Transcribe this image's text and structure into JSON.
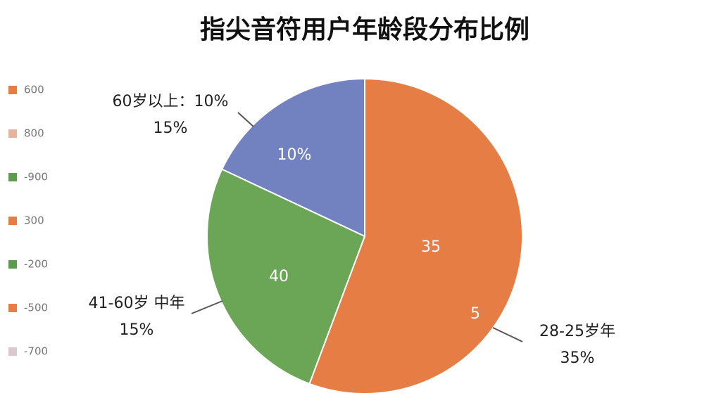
{
  "chart_data": {
    "type": "pie",
    "title": "指尖音符用户年龄段分布比例",
    "slices": [
      {
        "color": "#e57d45",
        "value": 55.7
      },
      {
        "color": "#6aa655",
        "value": 26.3
      },
      {
        "color": "#7281c0",
        "value": 18
      }
    ],
    "inner_labels": [
      "35",
      "5",
      "40",
      "10%"
    ],
    "outer_labels": [
      [
        "60岁以上：10%",
        "15%"
      ],
      [
        "41-60岁 中年",
        "15%"
      ],
      [
        "28-25岁年",
        "35%"
      ]
    ],
    "legend": [
      {
        "name": "600",
        "color": "#e57d45"
      },
      {
        "name": "800",
        "color": "#e8b39c"
      },
      {
        "name": "-900",
        "color": "#5e9a4f"
      },
      {
        "name": "300",
        "color": "#e57d45"
      },
      {
        "name": "-200",
        "color": "#5e9a4f"
      },
      {
        "name": "-500",
        "color": "#e57d45"
      },
      {
        "name": "-700",
        "color": "#dcc8cc"
      }
    ]
  }
}
